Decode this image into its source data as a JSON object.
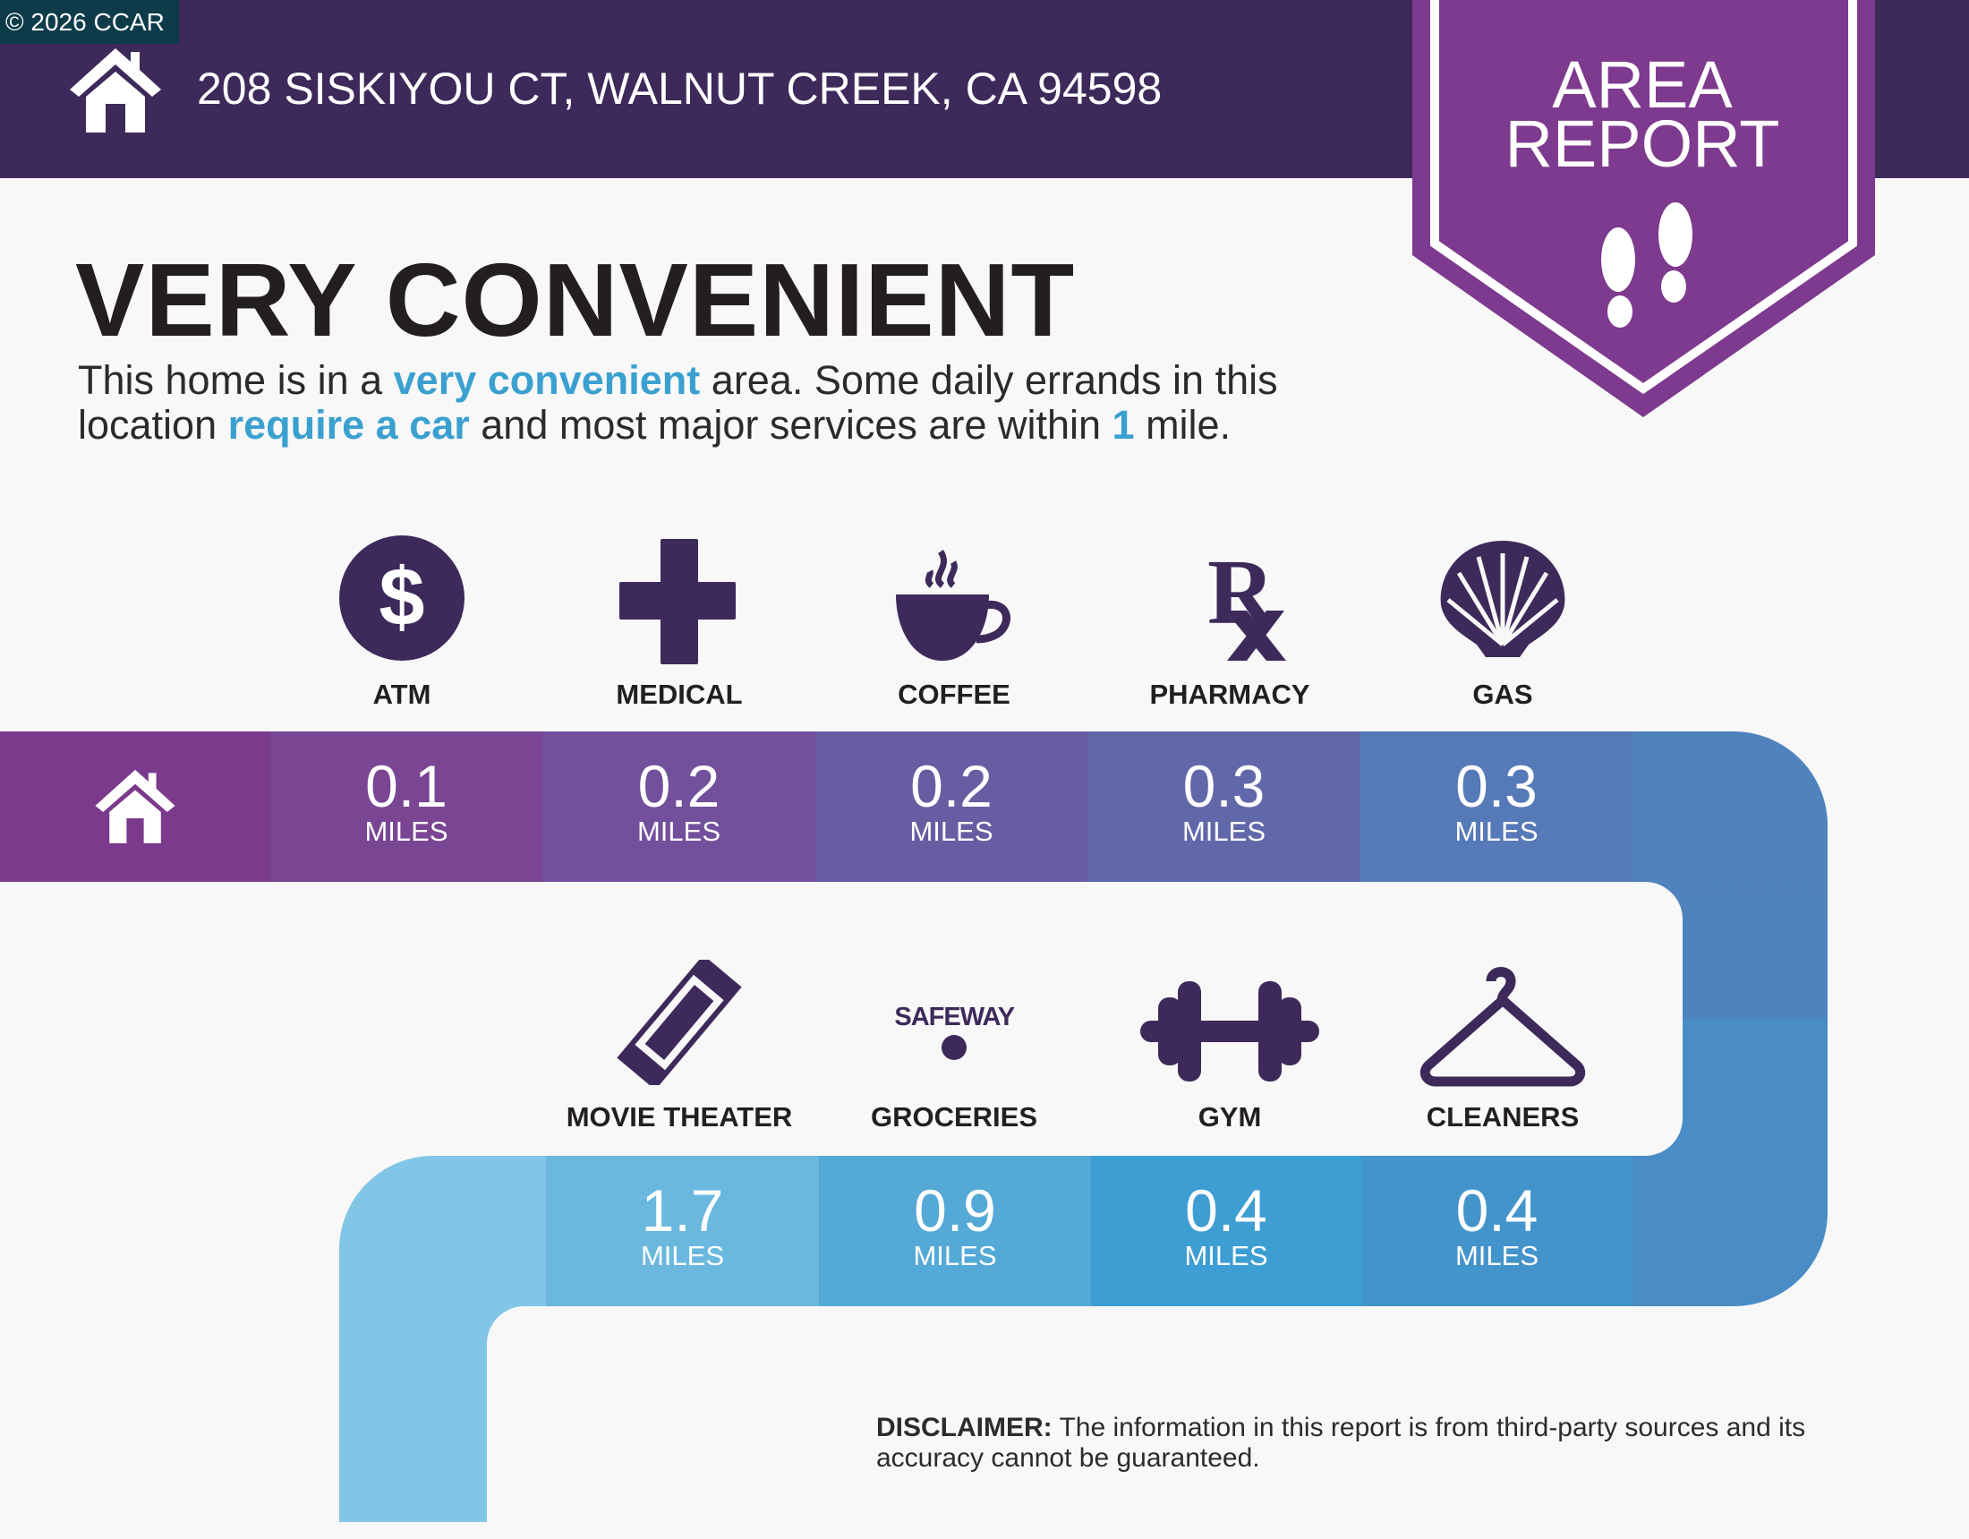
{
  "badge": "© 2026 CCAR",
  "header": {
    "address": "208 SISKIYOU CT, WALNUT CREEK, CA 94598",
    "ribbon_line1": "AREA",
    "ribbon_line2": "REPORT"
  },
  "headline": "VERY CONVENIENT",
  "description": {
    "p1": "This home is in a ",
    "h1": "very convenient",
    "p2": " area. Some daily errands in this location ",
    "h2": "require a car",
    "p3": " and most major services are within ",
    "h3": "1",
    "p4": " mile."
  },
  "colors": {
    "header": "#3d2a5a",
    "ribbon": "#7d3a8e",
    "accent": "#3aa0d0",
    "icon": "#3d2a5a"
  },
  "amenities": [
    {
      "label": "ATM",
      "icon": "dollar-icon",
      "distance": "0.1",
      "unit": "MILES"
    },
    {
      "label": "MEDICAL",
      "icon": "medical-cross-icon",
      "distance": "0.2",
      "unit": "MILES"
    },
    {
      "label": "COFFEE",
      "icon": "coffee-cup-icon",
      "distance": "0.2",
      "unit": "MILES"
    },
    {
      "label": "PHARMACY",
      "icon": "rx-icon",
      "distance": "0.3",
      "unit": "MILES"
    },
    {
      "label": "GAS",
      "icon": "shell-icon",
      "distance": "0.3",
      "unit": "MILES"
    },
    {
      "label": "MOVIE THEATER",
      "icon": "ticket-icon",
      "distance": "1.7",
      "unit": "MILES"
    },
    {
      "label": "GROCERIES",
      "icon": "safeway-logo",
      "logo_text": "SAFEWAY",
      "distance": "0.9",
      "unit": "MILES"
    },
    {
      "label": "GYM",
      "icon": "dumbbell-icon",
      "distance": "0.4",
      "unit": "MILES"
    },
    {
      "label": "CLEANERS",
      "icon": "hanger-icon",
      "distance": "0.4",
      "unit": "MILES"
    }
  ],
  "disclaimer": {
    "label": "DISCLAIMER:",
    "text": " The information in this report is from third-party sources and its accuracy cannot be guaranteed."
  }
}
